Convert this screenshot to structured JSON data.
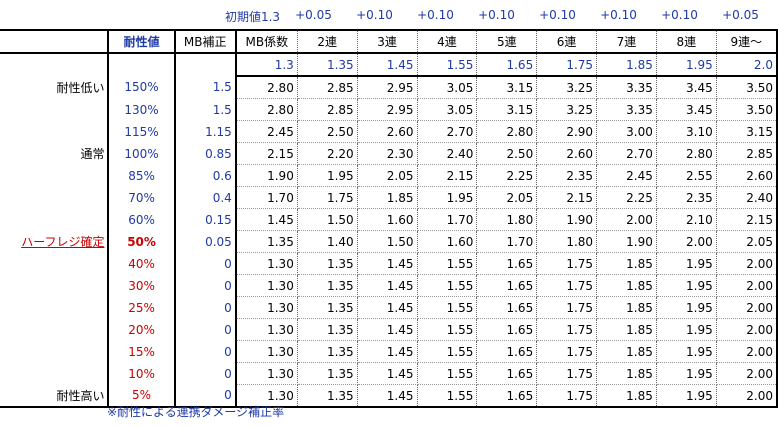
{
  "increments": [
    "初期値1.3",
    "+0.05",
    "+0.10",
    "+0.10",
    "+0.10",
    "+0.10",
    "+0.10",
    "+0.10",
    "+0.05"
  ],
  "header": {
    "resist_label": "耐性値",
    "mb_label": "MB補正",
    "cols": [
      "MB係数",
      "2連",
      "3連",
      "4連",
      "5連",
      "6連",
      "7連",
      "8連",
      "9連〜"
    ]
  },
  "base_row": [
    "1.3",
    "1.35",
    "1.45",
    "1.55",
    "1.65",
    "1.75",
    "1.85",
    "1.95",
    "2.0"
  ],
  "rows": [
    {
      "label": "耐性低い",
      "resist": "150%",
      "mb": "1.5",
      "values": [
        "2.80",
        "2.85",
        "2.95",
        "3.05",
        "3.15",
        "3.25",
        "3.35",
        "3.45",
        "3.50"
      ]
    },
    {
      "label": "",
      "resist": "130%",
      "mb": "1.5",
      "values": [
        "2.80",
        "2.85",
        "2.95",
        "3.05",
        "3.15",
        "3.25",
        "3.35",
        "3.45",
        "3.50"
      ]
    },
    {
      "label": "",
      "resist": "115%",
      "mb": "1.15",
      "values": [
        "2.45",
        "2.50",
        "2.60",
        "2.70",
        "2.80",
        "2.90",
        "3.00",
        "3.10",
        "3.15"
      ]
    },
    {
      "label": "通常",
      "resist": "100%",
      "mb": "0.85",
      "values": [
        "2.15",
        "2.20",
        "2.30",
        "2.40",
        "2.50",
        "2.60",
        "2.70",
        "2.80",
        "2.85"
      ]
    },
    {
      "label": "",
      "resist": "85%",
      "mb": "0.6",
      "values": [
        "1.90",
        "1.95",
        "2.05",
        "2.15",
        "2.25",
        "2.35",
        "2.45",
        "2.55",
        "2.60"
      ]
    },
    {
      "label": "",
      "resist": "70%",
      "mb": "0.4",
      "values": [
        "1.70",
        "1.75",
        "1.85",
        "1.95",
        "2.05",
        "2.15",
        "2.25",
        "2.35",
        "2.40"
      ]
    },
    {
      "label": "",
      "resist": "60%",
      "mb": "0.15",
      "values": [
        "1.45",
        "1.50",
        "1.60",
        "1.70",
        "1.80",
        "1.90",
        "2.00",
        "2.10",
        "2.15"
      ]
    },
    {
      "label": "ハーフレジ確定",
      "resist": "50%",
      "mb": "0.05",
      "values": [
        "1.35",
        "1.40",
        "1.50",
        "1.60",
        "1.70",
        "1.80",
        "1.90",
        "2.00",
        "2.05"
      ]
    },
    {
      "label": "",
      "resist": "40%",
      "mb": "0",
      "values": [
        "1.30",
        "1.35",
        "1.45",
        "1.55",
        "1.65",
        "1.75",
        "1.85",
        "1.95",
        "2.00"
      ]
    },
    {
      "label": "",
      "resist": "30%",
      "mb": "0",
      "values": [
        "1.30",
        "1.35",
        "1.45",
        "1.55",
        "1.65",
        "1.75",
        "1.85",
        "1.95",
        "2.00"
      ]
    },
    {
      "label": "",
      "resist": "25%",
      "mb": "0",
      "values": [
        "1.30",
        "1.35",
        "1.45",
        "1.55",
        "1.65",
        "1.75",
        "1.85",
        "1.95",
        "2.00"
      ]
    },
    {
      "label": "",
      "resist": "20%",
      "mb": "0",
      "values": [
        "1.30",
        "1.35",
        "1.45",
        "1.55",
        "1.65",
        "1.75",
        "1.85",
        "1.95",
        "2.00"
      ]
    },
    {
      "label": "",
      "resist": "15%",
      "mb": "0",
      "values": [
        "1.30",
        "1.35",
        "1.45",
        "1.55",
        "1.65",
        "1.75",
        "1.85",
        "1.95",
        "2.00"
      ]
    },
    {
      "label": "",
      "resist": "10%",
      "mb": "0",
      "values": [
        "1.30",
        "1.35",
        "1.45",
        "1.55",
        "1.65",
        "1.75",
        "1.85",
        "1.95",
        "2.00"
      ]
    },
    {
      "label": "耐性高い",
      "resist": "5%",
      "mb": "0",
      "values": [
        "1.30",
        "1.35",
        "1.45",
        "1.55",
        "1.65",
        "1.75",
        "1.85",
        "1.95",
        "2.00"
      ]
    }
  ],
  "footnote": "※耐性による連携ダメージ補正率",
  "colors": {
    "blue": "#1f3aa6",
    "red": "#cc0000"
  }
}
